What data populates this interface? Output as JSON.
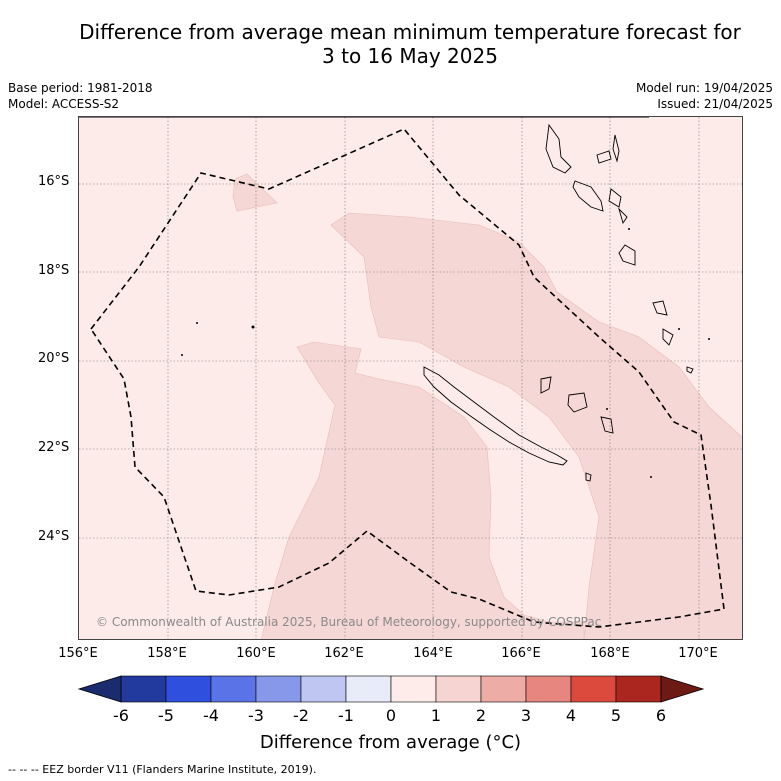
{
  "title_line1": "Difference from average mean minimum temperature forecast for",
  "title_line2": "3 to 16 May 2025",
  "meta": {
    "base_period": "Base period: 1981-2018",
    "model": "Model: ACCESS-S2",
    "model_run": "Model run: 19/04/2025",
    "issued": "Issued: 21/04/2025"
  },
  "lat_labels": [
    "16°S",
    "18°S",
    "20°S",
    "22°S",
    "24°S"
  ],
  "lon_labels": [
    "156°E",
    "158°E",
    "160°E",
    "162°E",
    "164°E",
    "166°E",
    "168°E",
    "170°E"
  ],
  "copyright": "© Commonwealth of Australia 2025, Bureau of Meteorology, supported by COSPPac",
  "colorbar": {
    "ticks": [
      "-6",
      "-5",
      "-4",
      "-3",
      "-2",
      "-1",
      "0",
      "1",
      "2",
      "3",
      "4",
      "5",
      "6"
    ],
    "label": "Difference from average (°C)",
    "colors": [
      "#223a9e",
      "#2f4fdf",
      "#5a73e6",
      "#8797ea",
      "#bfc6f2",
      "#e8ebf8",
      "#fdecea",
      "#f6d4d1",
      "#eeaca6",
      "#e6867e",
      "#dc4a3e",
      "#ab261f"
    ],
    "low_extend_color": "#1a2b6e",
    "high_extend_color": "#6e1a14"
  },
  "map_colors": {
    "band_0_1": "#fcebe9",
    "band_1_2": "#f5d7d5"
  },
  "footer": "--  --  -- EEZ border V11 (Flanders Marine Institute, 2019)."
}
